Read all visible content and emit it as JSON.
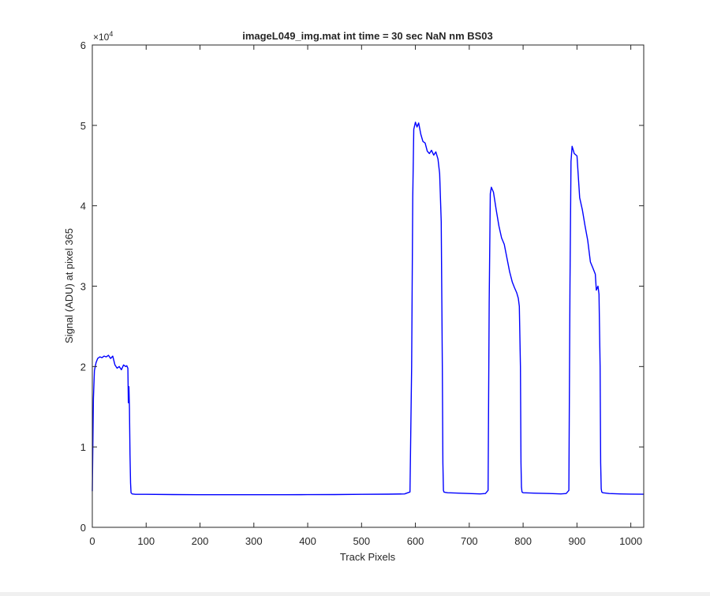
{
  "chart_data": {
    "type": "line",
    "title": "imageL049_img.mat int time = 30 sec  NaN nm BS03",
    "xlabel": "Track Pixels",
    "ylabel": "Signal (ADU) at pixel 365",
    "y_exponent_label": "×10",
    "y_exponent_power": "4",
    "xlim": [
      0,
      1024
    ],
    "ylim": [
      0,
      60000
    ],
    "xticks": [
      0,
      100,
      200,
      300,
      400,
      500,
      600,
      700,
      800,
      900,
      1000
    ],
    "xtick_labels": [
      "0",
      "100",
      "200",
      "300",
      "400",
      "500",
      "600",
      "700",
      "800",
      "900",
      "1000"
    ],
    "yticks": [
      0,
      10000,
      20000,
      30000,
      40000,
      50000,
      60000
    ],
    "ytick_labels": [
      "0",
      "1",
      "2",
      "3",
      "4",
      "5",
      "6"
    ],
    "grid": false,
    "line_color": "#0000ff",
    "series": [
      {
        "x": [
          0,
          2,
          4,
          7,
          10,
          14,
          18,
          22,
          26,
          30,
          34,
          38,
          42,
          46,
          50,
          54,
          58,
          62,
          64,
          66,
          67,
          68,
          69,
          70,
          71,
          72,
          74,
          80,
          100,
          150,
          200,
          250,
          300,
          350,
          400,
          450,
          500,
          550,
          580,
          590,
          593,
          595,
          597,
          600,
          603,
          606,
          610,
          614,
          618,
          622,
          626,
          630,
          634,
          638,
          642,
          645,
          648,
          650,
          651,
          652,
          653,
          655,
          660,
          680,
          700,
          720,
          730,
          735,
          737,
          739,
          741,
          745,
          750,
          755,
          760,
          765,
          770,
          775,
          780,
          784,
          788,
          791,
          793,
          795,
          796,
          797,
          798,
          800,
          820,
          850,
          870,
          880,
          885,
          887,
          889,
          891,
          895,
          900,
          905,
          910,
          915,
          920,
          925,
          930,
          934,
          936,
          939,
          941,
          943,
          944,
          945,
          946,
          948,
          960,
          980,
          1000,
          1024
        ],
        "y": [
          4500,
          16000,
          19500,
          20500,
          21000,
          21200,
          21100,
          21300,
          21200,
          21400,
          21000,
          21300,
          20200,
          19800,
          20000,
          19600,
          20200,
          20000,
          20100,
          19800,
          15500,
          17500,
          14800,
          9000,
          5500,
          4300,
          4150,
          4100,
          4100,
          4080,
          4060,
          4060,
          4060,
          4060,
          4070,
          4080,
          4100,
          4120,
          4150,
          4400,
          20000,
          41000,
          49500,
          50400,
          49800,
          50300,
          48900,
          48000,
          47800,
          46800,
          46500,
          46900,
          46300,
          46700,
          45800,
          44000,
          38000,
          20000,
          8000,
          4600,
          4400,
          4350,
          4300,
          4250,
          4200,
          4150,
          4200,
          4600,
          28000,
          41500,
          42300,
          41700,
          39500,
          37500,
          36000,
          35200,
          33500,
          31800,
          30500,
          29800,
          29200,
          28500,
          27500,
          20000,
          8000,
          5000,
          4400,
          4300,
          4250,
          4200,
          4150,
          4200,
          4600,
          30000,
          45500,
          47400,
          46500,
          46200,
          41000,
          39500,
          37500,
          35700,
          33000,
          32200,
          31500,
          29500,
          30000,
          29000,
          20000,
          8000,
          4800,
          4400,
          4300,
          4200,
          4150,
          4130,
          4110
        ]
      }
    ]
  }
}
